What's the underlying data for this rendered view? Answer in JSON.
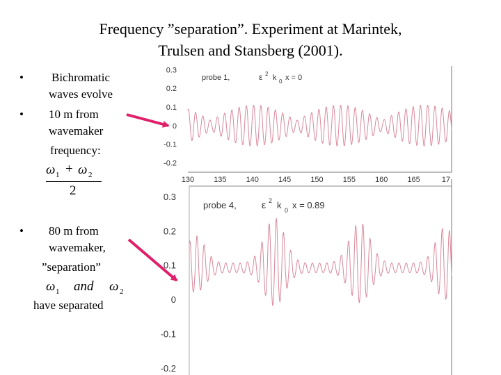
{
  "title": {
    "line1": "Frequency ”separation”. Experiment at Marintek,",
    "line2": "Trulsen and Stansberg (2001)."
  },
  "bullets": [
    {
      "lines": [
        "Bichromatic",
        "waves evolve"
      ]
    },
    {
      "lines": [
        "10 m from",
        "wavemaker",
        "frequency:"
      ]
    },
    {
      "lines": [
        "80 m from",
        "wavemaker,",
        "”separation”"
      ]
    }
  ],
  "math": {
    "omega1": "ω",
    "sub1": "1",
    "plus": "+",
    "omega2": "ω",
    "sub2": "2",
    "denominator": "2",
    "and_word": "and"
  },
  "footer_text": "have separated",
  "colors": {
    "signal": "#d9889a",
    "arrow": "#e0206a",
    "axis": "#555555"
  },
  "chart_data": [
    {
      "type": "line",
      "panel": "top",
      "label": {
        "probe": "probe 1,",
        "eps": "ε",
        "eps_sup": "2",
        "k": "k",
        "k_sub": "0",
        "rest": "x = 0"
      },
      "xlim": [
        130,
        170
      ],
      "ylim": [
        -0.25,
        0.32
      ],
      "xticks": [
        "130",
        "135",
        "140",
        "145",
        "150",
        "155",
        "160",
        "165",
        "17"
      ],
      "yticks": [
        "0.3",
        "0.2",
        "0.1",
        "0",
        "-0.1",
        "-0.2"
      ],
      "ytick_values": [
        0.3,
        0.2,
        0.1,
        0,
        -0.1,
        -0.2
      ],
      "series": [
        {
          "amp": 0.11,
          "offset": 0.0,
          "carrier_period": 1.1,
          "envelope_period": 13.0
        }
      ]
    },
    {
      "type": "line",
      "panel": "bottom",
      "label": {
        "probe": "probe 4,",
        "eps": "ε",
        "eps_sup": "2",
        "k": "k",
        "k_sub": "0",
        "rest": "x = 0.89"
      },
      "xlim": [
        130,
        170
      ],
      "ylim": [
        -0.22,
        0.33
      ],
      "yticks": [
        "0.3",
        "0.2",
        "0.1",
        "0",
        "-0.1",
        "-0.2"
      ],
      "ytick_values": [
        0.3,
        0.2,
        0.1,
        0,
        -0.1,
        -0.2
      ],
      "series": [
        {
          "amp": 0.115,
          "offset": 0.09,
          "carrier_period": 1.1,
          "envelope_period": 13.0
        }
      ]
    }
  ]
}
